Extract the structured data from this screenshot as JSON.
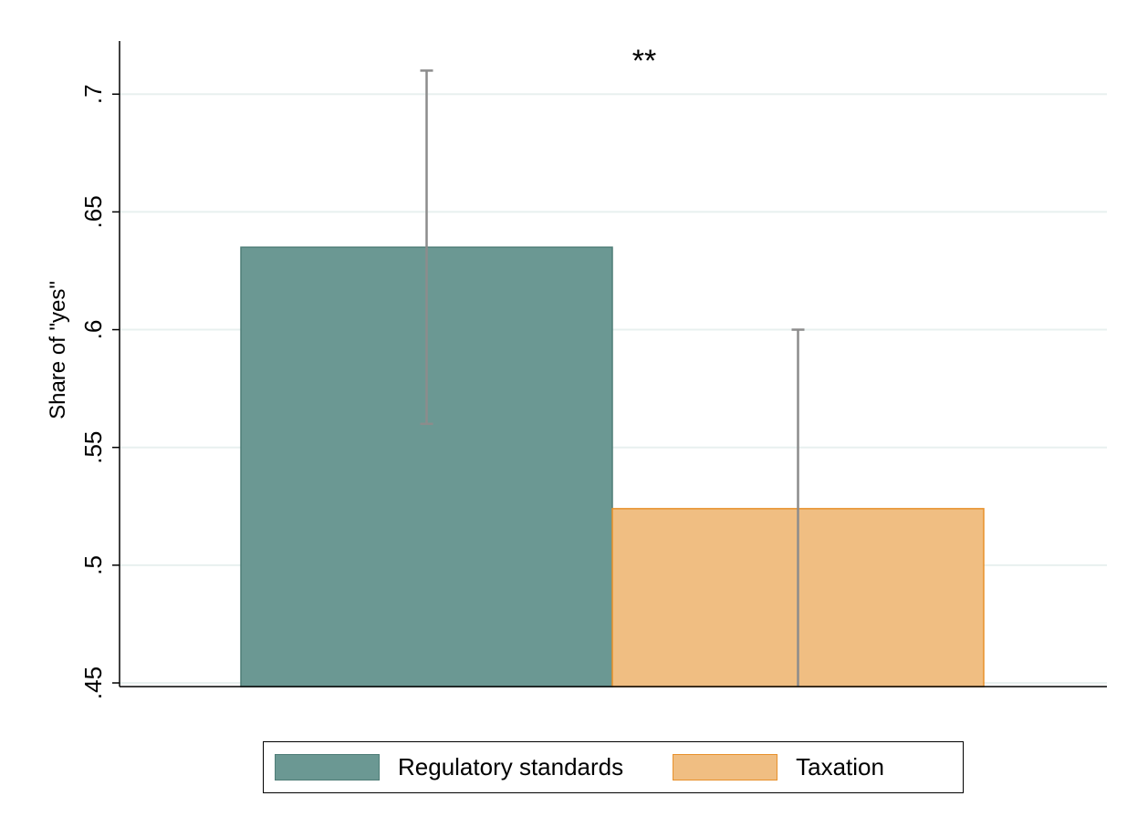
{
  "chart_data": {
    "type": "bar",
    "title": "",
    "xlabel": "",
    "ylabel": "Share of \"yes\"",
    "ylim": [
      0.45,
      0.72
    ],
    "yticks": [
      0.45,
      0.5,
      0.55,
      0.6,
      0.65,
      0.7
    ],
    "ytick_labels": [
      ".45",
      ".5",
      ".55",
      ".6",
      ".65",
      ".7"
    ],
    "grid": true,
    "legend_position": "bottom",
    "annotation": "**",
    "series": [
      {
        "name": "Regulatory standards",
        "value": 0.635,
        "ci": [
          0.56,
          0.71
        ],
        "color": "#6b9893",
        "edge": "#4e7d77"
      },
      {
        "name": "Taxation",
        "value": 0.524,
        "ci": [
          0.448,
          0.6
        ],
        "color": "#f0be82",
        "edge": "#e8912b"
      }
    ],
    "errorbar_color": "#8c8c8c",
    "grid_color": "#e8f0ef"
  }
}
